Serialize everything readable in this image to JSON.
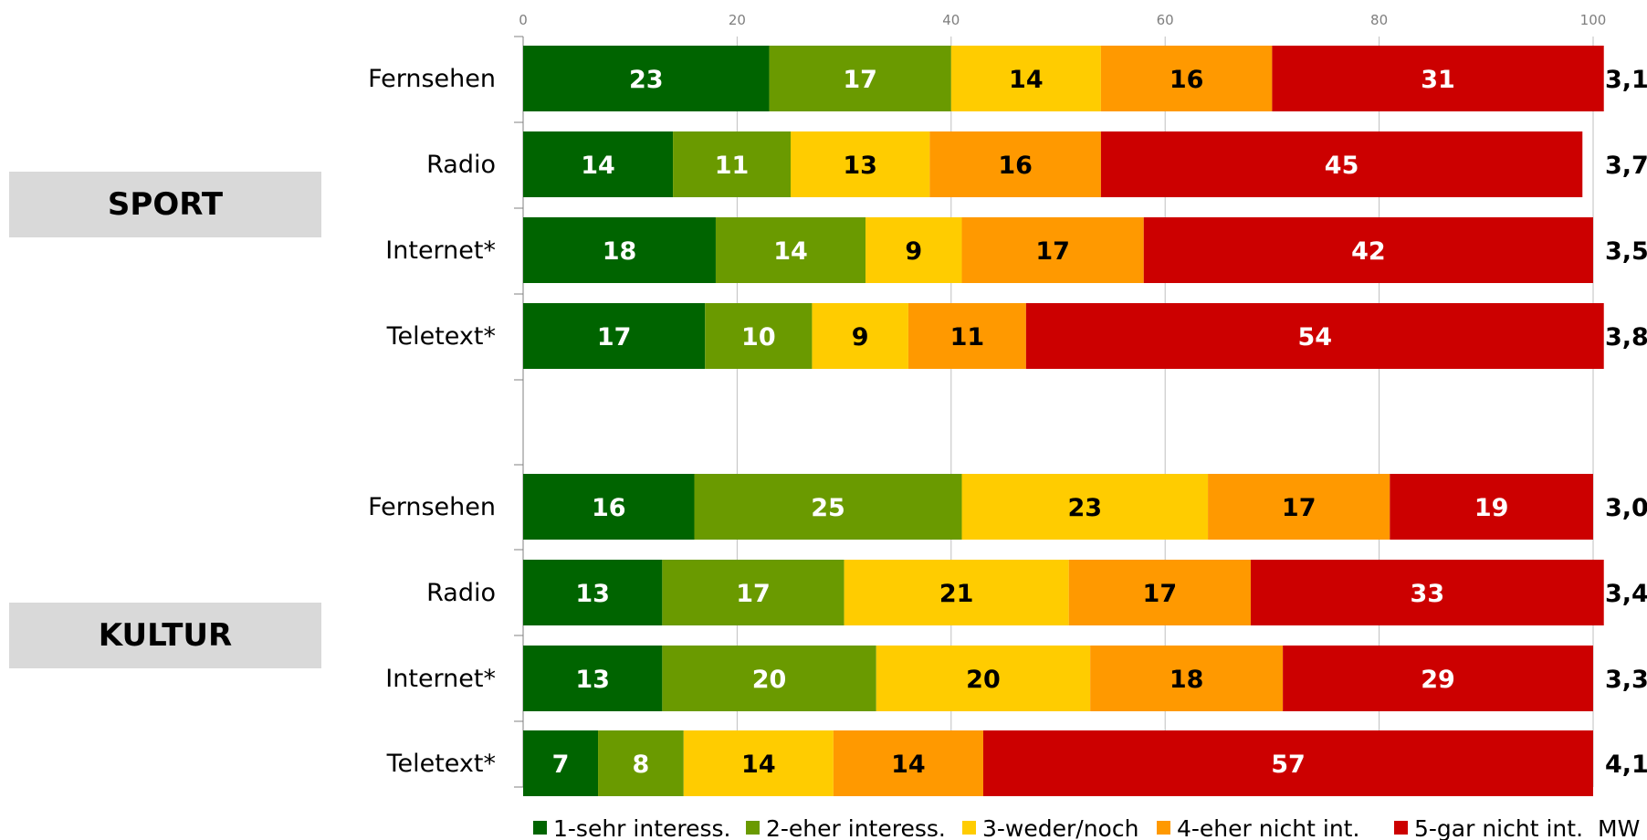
{
  "chart_data": {
    "type": "bar",
    "orientation": "horizontal",
    "stacked": true,
    "xlim": [
      0,
      100
    ],
    "x_ticks": [
      0,
      20,
      40,
      60,
      80,
      100
    ],
    "grid": "vertical",
    "legend_position": "bottom",
    "series": [
      {
        "name": "1-sehr interess.",
        "color": "#006400"
      },
      {
        "name": "2-eher interess.",
        "color": "#6a9a00"
      },
      {
        "name": "3-weder/noch",
        "color": "#ffcc00"
      },
      {
        "name": "4-eher nicht int.",
        "color": "#ff9900"
      },
      {
        "name": "5-gar nicht int.",
        "color": "#cc0000"
      }
    ],
    "label_colors": [
      "#ffffff",
      "#ffffff",
      "#000000",
      "#000000",
      "#ffffff"
    ],
    "mw_label": "MW",
    "groups": [
      {
        "name": "SPORT",
        "rows": [
          {
            "label": "Fernsehen",
            "values": [
              23,
              17,
              14,
              16,
              31
            ],
            "mw": "3,1"
          },
          {
            "label": "Radio",
            "values": [
              14,
              11,
              13,
              16,
              45
            ],
            "mw": "3,7"
          },
          {
            "label": "Internet*",
            "values": [
              18,
              14,
              9,
              17,
              42
            ],
            "mw": "3,5"
          },
          {
            "label": "Teletext*",
            "values": [
              17,
              10,
              9,
              11,
              54
            ],
            "mw": "3,8"
          }
        ]
      },
      {
        "name": "KULTUR",
        "rows": [
          {
            "label": "Fernsehen",
            "values": [
              16,
              25,
              23,
              17,
              19
            ],
            "mw": "3,0"
          },
          {
            "label": "Radio",
            "values": [
              13,
              17,
              21,
              17,
              33
            ],
            "mw": "3,4"
          },
          {
            "label": "Internet*",
            "values": [
              13,
              20,
              20,
              18,
              29
            ],
            "mw": "3,3"
          },
          {
            "label": "Teletext*",
            "values": [
              7,
              8,
              14,
              14,
              57
            ],
            "mw": "4,1"
          }
        ]
      }
    ]
  }
}
